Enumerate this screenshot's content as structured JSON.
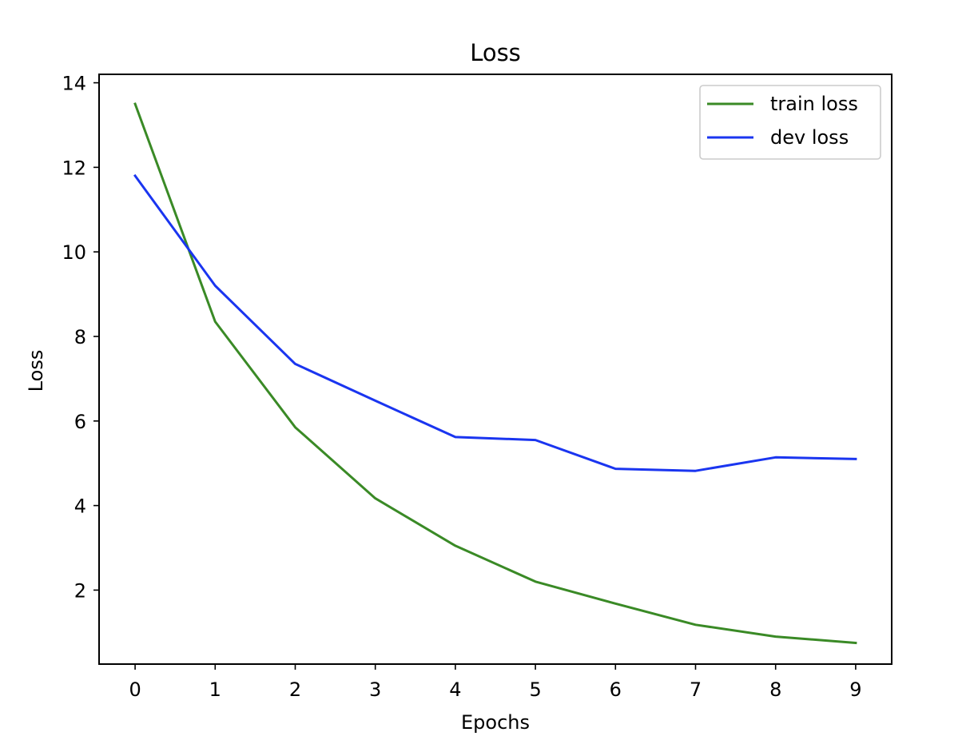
{
  "chart_data": {
    "type": "line",
    "title": "Loss",
    "xlabel": "Epochs",
    "ylabel": "Loss",
    "x": [
      0,
      1,
      2,
      3,
      4,
      5,
      6,
      7,
      8,
      9
    ],
    "xlim": [
      -0.45,
      9.45
    ],
    "ylim": [
      0.25,
      14.2
    ],
    "xticks": [
      0,
      1,
      2,
      3,
      4,
      5,
      6,
      7,
      8,
      9
    ],
    "yticks": [
      2,
      4,
      6,
      8,
      10,
      12,
      14
    ],
    "grid": false,
    "legend_position": "top-right",
    "series": [
      {
        "name": "train loss",
        "color": "#3a8a26",
        "values": [
          13.5,
          8.35,
          5.85,
          4.17,
          3.05,
          2.2,
          1.68,
          1.18,
          0.9,
          0.75
        ]
      },
      {
        "name": "dev loss",
        "color": "#1a35f0",
        "values": [
          11.8,
          9.2,
          7.35,
          6.48,
          5.62,
          5.55,
          4.87,
          4.82,
          5.14,
          5.1
        ]
      }
    ]
  }
}
